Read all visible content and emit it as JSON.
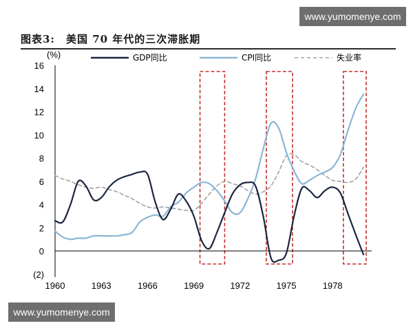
{
  "watermark_top": "www.yumomenye.com",
  "watermark_bottom": "www.yumomenye.com",
  "figure_title": "图表3:　美国 70 年代的三次滞胀期",
  "chart_data": {
    "type": "line",
    "ylabel": "(%)",
    "ylim": [
      -2,
      16
    ],
    "xlim": [
      1960,
      1980
    ],
    "y_ticks": [
      "16",
      "14",
      "12",
      "10",
      "8",
      "6",
      "4",
      "2",
      "0",
      "(2)"
    ],
    "x_ticks": [
      "1960",
      "1963",
      "1966",
      "1969",
      "1972",
      "1975",
      "1978"
    ],
    "legend": "top",
    "series": [
      {
        "name": "GDP同比",
        "color": "#1a2540",
        "style": "solid",
        "x": [
          1960,
          1960.5,
          1961,
          1961.5,
          1962,
          1962.5,
          1963,
          1963.5,
          1964,
          1964.5,
          1965,
          1965.5,
          1966,
          1966.5,
          1967,
          1967.5,
          1968,
          1968.5,
          1969,
          1969.5,
          1970,
          1970.5,
          1971,
          1971.5,
          1972,
          1972.5,
          1973,
          1973.5,
          1974,
          1974.5,
          1975,
          1975.5,
          1976,
          1976.5,
          1977,
          1977.5,
          1978,
          1978.5,
          1979,
          1979.5,
          1980
        ],
        "y": [
          2.6,
          2.5,
          4.0,
          6.0,
          5.6,
          4.4,
          4.6,
          5.5,
          6.1,
          6.4,
          6.6,
          6.8,
          6.6,
          4.2,
          2.7,
          3.6,
          4.9,
          4.3,
          3.0,
          0.9,
          0.2,
          1.6,
          3.3,
          4.9,
          5.7,
          5.9,
          5.6,
          3.0,
          -0.6,
          -0.8,
          -0.2,
          3.0,
          5.4,
          5.2,
          4.6,
          5.2,
          5.5,
          5.0,
          3.2,
          1.4,
          -0.3
        ]
      },
      {
        "name": "CPI同比",
        "color": "#8ab6d6",
        "style": "solid",
        "x": [
          1960,
          1960.5,
          1961,
          1961.5,
          1962,
          1962.5,
          1963,
          1963.5,
          1964,
          1964.5,
          1965,
          1965.5,
          1966,
          1966.5,
          1967,
          1967.5,
          1968,
          1968.5,
          1969,
          1969.5,
          1970,
          1970.5,
          1971,
          1971.5,
          1972,
          1972.5,
          1973,
          1973.5,
          1974,
          1974.5,
          1975,
          1975.5,
          1976,
          1976.5,
          1977,
          1977.5,
          1978,
          1978.5,
          1979,
          1979.5,
          1980
        ],
        "y": [
          1.7,
          1.2,
          1.0,
          1.1,
          1.1,
          1.3,
          1.3,
          1.3,
          1.3,
          1.4,
          1.6,
          2.5,
          2.9,
          3.1,
          3.0,
          3.8,
          4.2,
          5.0,
          5.5,
          5.9,
          5.8,
          5.2,
          4.3,
          3.3,
          3.3,
          4.5,
          6.2,
          8.8,
          11.0,
          10.6,
          8.5,
          6.9,
          5.8,
          6.1,
          6.5,
          6.8,
          7.2,
          8.3,
          10.4,
          12.3,
          13.5
        ]
      },
      {
        "name": "失业率",
        "color": "#a0a0a0",
        "style": "dashed",
        "x": [
          1960,
          1960.5,
          1961,
          1961.5,
          1962,
          1962.5,
          1963,
          1963.5,
          1964,
          1964.5,
          1965,
          1965.5,
          1966,
          1966.5,
          1967,
          1967.5,
          1968,
          1968.5,
          1969,
          1969.5,
          1970,
          1970.5,
          1971,
          1971.5,
          1972,
          1972.5,
          1973,
          1973.5,
          1974,
          1974.5,
          1975,
          1975.5,
          1976,
          1976.5,
          1977,
          1977.5,
          1978,
          1978.5,
          1979,
          1979.5,
          1980
        ],
        "y": [
          6.5,
          6.2,
          6.0,
          5.7,
          5.5,
          5.4,
          5.5,
          5.3,
          5.1,
          4.8,
          4.5,
          4.1,
          3.8,
          3.7,
          3.8,
          3.7,
          3.6,
          3.5,
          3.5,
          4.1,
          4.9,
          5.6,
          6.0,
          5.8,
          5.6,
          5.2,
          4.9,
          5.1,
          5.6,
          6.8,
          8.2,
          8.3,
          7.7,
          7.4,
          7.0,
          6.5,
          6.1,
          6.0,
          5.9,
          6.2,
          7.2
        ]
      }
    ],
    "highlight_periods": [
      [
        1969.4,
        1971.0
      ],
      [
        1973.7,
        1975.4
      ],
      [
        1978.7,
        1981.3
      ]
    ],
    "highlight_color": "#c0302c"
  }
}
